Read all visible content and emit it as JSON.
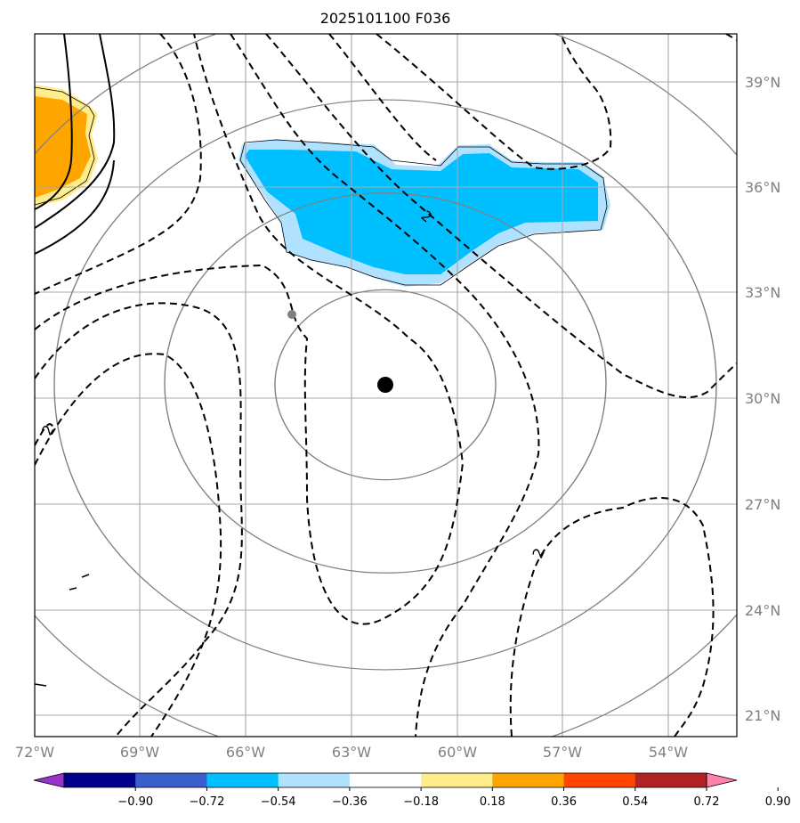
{
  "title": "2025101100 F036",
  "lat_labels": [
    "39°N",
    "36°N",
    "33°N",
    "30°N",
    "27°N",
    "24°N",
    "21°N"
  ],
  "lon_labels": [
    "72°W",
    "69°W",
    "66°W",
    "63°W",
    "60°W",
    "57°W",
    "54°W"
  ],
  "contour_labels": [
    "2",
    "2",
    "2"
  ],
  "colorbar": {
    "ticks": [
      "−0.90",
      "−0.72",
      "−0.54",
      "−0.36",
      "−0.18",
      "0.18",
      "0.36",
      "0.54",
      "0.72",
      "0.90"
    ],
    "colors": [
      "#9932cc",
      "#00008b",
      "#3a5fcd",
      "#00bfff",
      "#b0e2ff",
      "#ffffff",
      "#ffec8b",
      "#ffa500",
      "#ff4500",
      "#b22222",
      "#ff82ab"
    ]
  },
  "center_marker": {
    "lat": 30.4,
    "lon": -62.0
  },
  "fill_colors": {
    "positive_outer": "#ffec8b",
    "positive_inner": "#ffa500",
    "negative_outer": "#b0e2ff",
    "negative_inner": "#00bfff"
  }
}
